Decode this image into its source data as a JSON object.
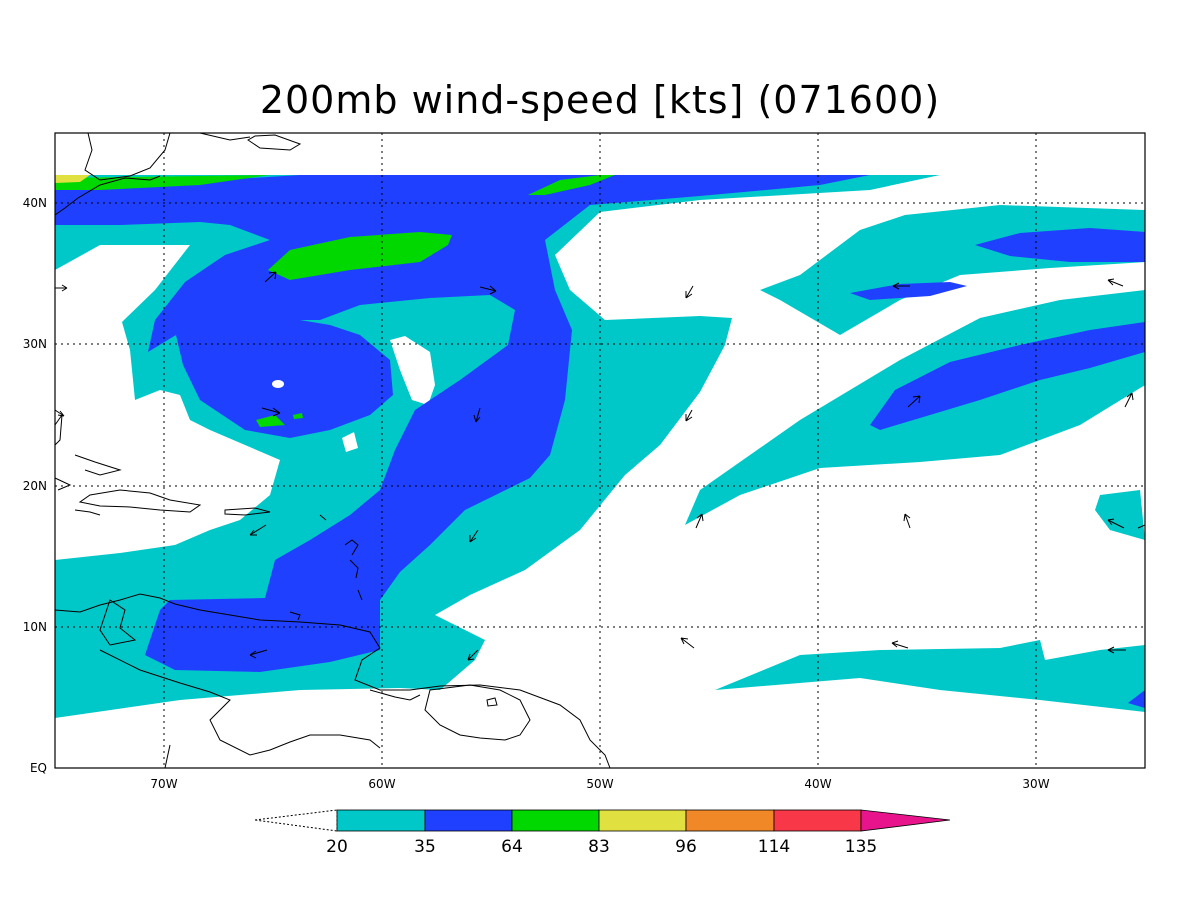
{
  "title": "200mb wind-speed [kts] (071600)",
  "map": {
    "lon_labels": [
      "70W",
      "60W",
      "50W",
      "40W",
      "30W"
    ],
    "lat_labels": [
      "40N",
      "30N",
      "20N",
      "10N",
      "EQ"
    ],
    "field": "200mb wind-speed",
    "units": "kts"
  },
  "colorbar": {
    "levels": [
      "20",
      "35",
      "64",
      "83",
      "96",
      "114",
      "135"
    ],
    "colors": [
      "#00c8c8",
      "#2040ff",
      "#00d800",
      "#e0e040",
      "#f08828",
      "#f83848",
      "#e8148c"
    ]
  },
  "palette": {
    "cyan": "#00c8c8",
    "blue": "#2040ff",
    "green": "#00d800",
    "yellow": "#e0e040"
  }
}
